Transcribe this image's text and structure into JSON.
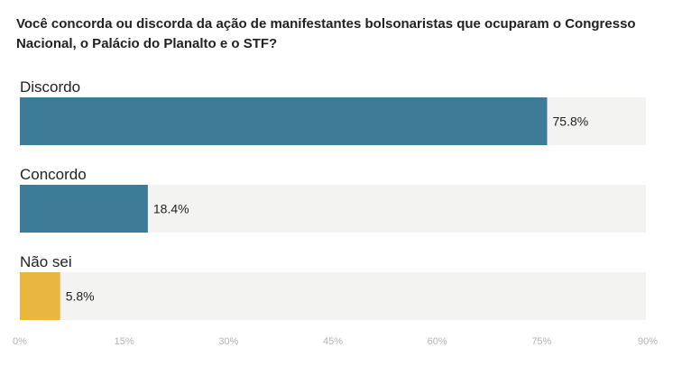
{
  "chart_data": {
    "type": "bar",
    "orientation": "horizontal",
    "title": "Você concorda ou discorda da ação de manifestantes bolsonaristas que ocuparam o Congresso Nacional, o Palácio do Planalto e o STF?",
    "categories": [
      "Discordo",
      "Concordo",
      "Não sei"
    ],
    "values": [
      75.8,
      18.4,
      5.8
    ],
    "value_labels": [
      "75.8%",
      "18.4%",
      "5.8%"
    ],
    "bar_colors": [
      "#3d7b96",
      "#3d7b96",
      "#e9b640"
    ],
    "background_color": "#f3f3f2",
    "xlim": [
      0,
      90
    ],
    "xticks": [
      0,
      15,
      30,
      45,
      60,
      75,
      90
    ],
    "xtick_labels": [
      "0%",
      "15%",
      "30%",
      "45%",
      "60%",
      "75%",
      "90%"
    ],
    "xlabel": "",
    "ylabel": "",
    "grid": false,
    "legend": "none"
  }
}
